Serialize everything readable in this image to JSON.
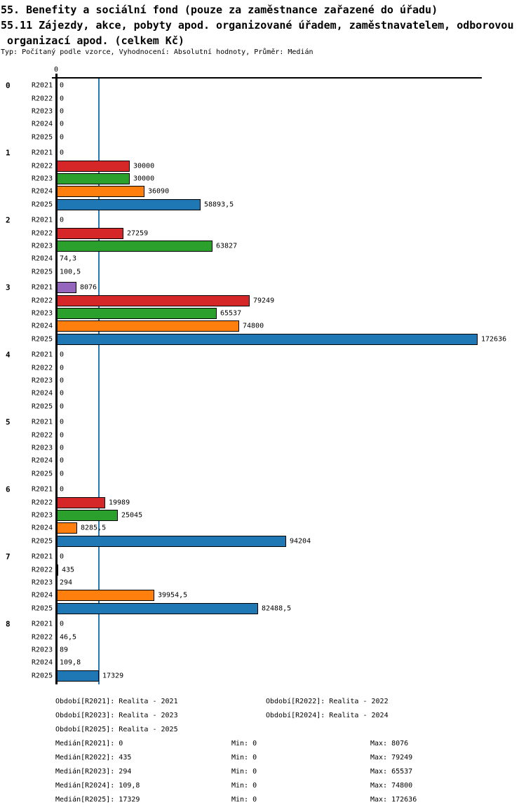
{
  "header": {
    "title_line1": "55. Benefity a sociální fond (pouze za zaměstnance zařazené do úřadu)",
    "title_line2": "55.11 Zájezdy, akce, pobyty apod. organizované úřadem, zaměstnavatelem, odborovou",
    "title_line3": " organizací apod. (celkem Kč)",
    "subtitle": "Typ: Počítaný podle vzorce, Vyhodnocení: Absolutní hodnoty, Průměr: Medián"
  },
  "chart_data": {
    "type": "bar",
    "orientation": "horizontal",
    "x_axis": {
      "tick_labels": [
        "0"
      ],
      "min": 0,
      "max": 172636,
      "grid": false
    },
    "reference_line": {
      "value": 17329,
      "color": "#2878b4",
      "meaning": "Medián[R2025]"
    },
    "series": [
      {
        "name": "R2021",
        "color": "#9467bd"
      },
      {
        "name": "R2022",
        "color": "#d62728"
      },
      {
        "name": "R2023",
        "color": "#2ca02c"
      },
      {
        "name": "R2024",
        "color": "#ff7f0e"
      },
      {
        "name": "R2025",
        "color": "#1f77b4"
      }
    ],
    "groups": [
      {
        "label": "0",
        "values": [
          0,
          0,
          0,
          0,
          0
        ],
        "value_labels": [
          "0",
          "0",
          "0",
          "0",
          "0"
        ]
      },
      {
        "label": "1",
        "values": [
          0,
          30000,
          30000,
          36090,
          58893.5
        ],
        "value_labels": [
          "0",
          "30000",
          "30000",
          "36090",
          "58893,5"
        ]
      },
      {
        "label": "2",
        "values": [
          0,
          27259,
          63827,
          74.3,
          100.5
        ],
        "value_labels": [
          "0",
          "27259",
          "63827",
          "74,3",
          "100,5"
        ]
      },
      {
        "label": "3",
        "values": [
          8076,
          79249,
          65537,
          74800,
          172636
        ],
        "value_labels": [
          "8076",
          "79249",
          "65537",
          "74800",
          "172636"
        ]
      },
      {
        "label": "4",
        "values": [
          0,
          0,
          0,
          0,
          0
        ],
        "value_labels": [
          "0",
          "0",
          "0",
          "0",
          "0"
        ]
      },
      {
        "label": "5",
        "values": [
          0,
          0,
          0,
          0,
          0
        ],
        "value_labels": [
          "0",
          "0",
          "0",
          "0",
          "0"
        ]
      },
      {
        "label": "6",
        "values": [
          0,
          19989,
          25045,
          8285.5,
          94204
        ],
        "value_labels": [
          "0",
          "19989",
          "25045",
          "8285,5",
          "94204"
        ]
      },
      {
        "label": "7",
        "values": [
          0,
          435,
          294,
          39954.5,
          82488.5
        ],
        "value_labels": [
          "0",
          "435",
          "294",
          "39954,5",
          "82488,5"
        ]
      },
      {
        "label": "8",
        "values": [
          0,
          46.5,
          89,
          109.8,
          17329
        ],
        "value_labels": [
          "0",
          "46,5",
          "89",
          "109,8",
          "17329"
        ]
      }
    ],
    "legend_period_rows": [
      [
        "Období[R2021]: Realita - 2021",
        "Období[R2022]: Realita - 2022"
      ],
      [
        "Období[R2023]: Realita - 2023",
        "Období[R2024]: Realita - 2024"
      ],
      [
        "Období[R2025]: Realita - 2025"
      ]
    ],
    "stats": [
      {
        "median": "Medián[R2021]: 0",
        "min": "Min: 0",
        "max": "Max: 8076"
      },
      {
        "median": "Medián[R2022]: 435",
        "min": "Min: 0",
        "max": "Max: 79249"
      },
      {
        "median": "Medián[R2023]: 294",
        "min": "Min: 0",
        "max": "Max: 65537"
      },
      {
        "median": "Medián[R2024]: 109,8",
        "min": "Min: 0",
        "max": "Max: 74800"
      },
      {
        "median": "Medián[R2025]: 17329",
        "min": "Min: 0",
        "max": "Max: 172636"
      }
    ]
  }
}
